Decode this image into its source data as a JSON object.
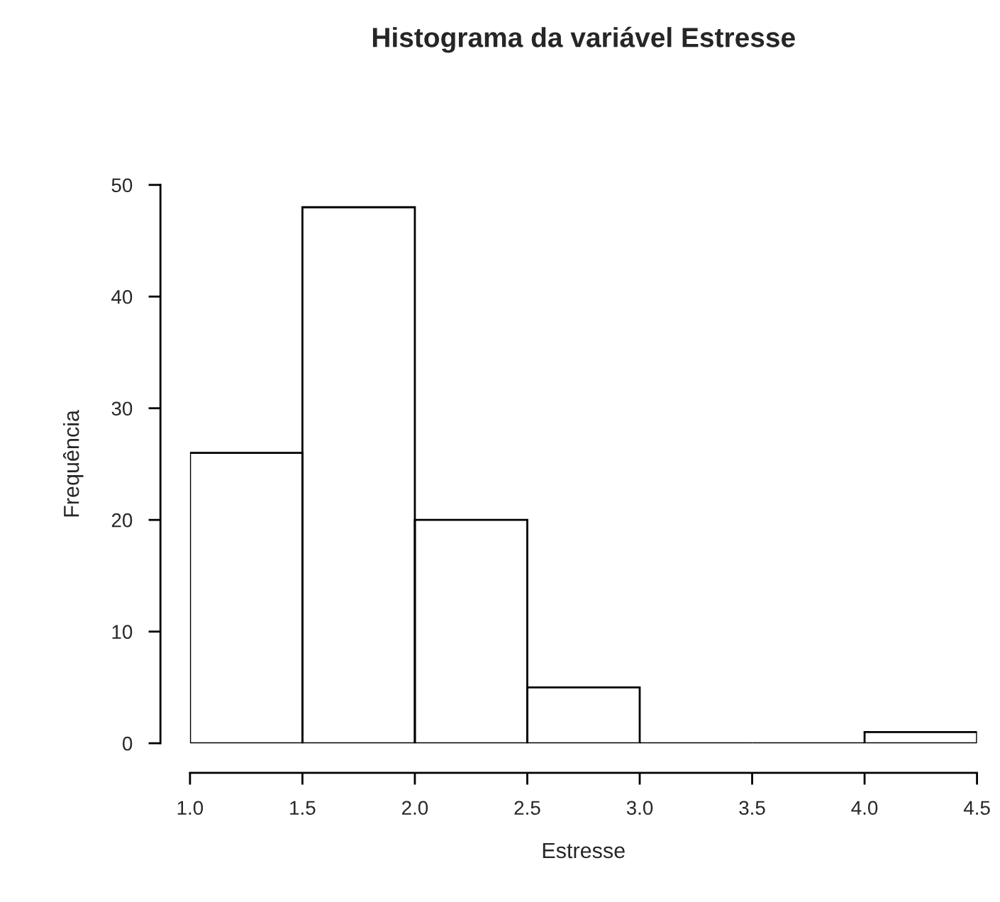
{
  "chart_data": {
    "type": "histogram",
    "title": "Histograma da variável Estresse",
    "xlabel": "Estresse",
    "ylabel": "Frequência",
    "bins": [
      1.0,
      1.5,
      2.0,
      2.5,
      3.0,
      3.5,
      4.0,
      4.5
    ],
    "values": [
      26,
      48,
      20,
      5,
      0,
      0,
      1
    ],
    "xlim": [
      1.0,
      4.5
    ],
    "ylim": [
      0,
      50
    ],
    "xticks": [
      {
        "value": 1.0,
        "label": "1.0"
      },
      {
        "value": 1.5,
        "label": "1.5"
      },
      {
        "value": 2.0,
        "label": "2.0"
      },
      {
        "value": 2.5,
        "label": "2.5"
      },
      {
        "value": 3.0,
        "label": "3.0"
      },
      {
        "value": 3.5,
        "label": "3.5"
      },
      {
        "value": 4.0,
        "label": "4.0"
      },
      {
        "value": 4.5,
        "label": "4.5"
      }
    ],
    "yticks": [
      0,
      10,
      20,
      30,
      40,
      50
    ],
    "grid": false
  }
}
